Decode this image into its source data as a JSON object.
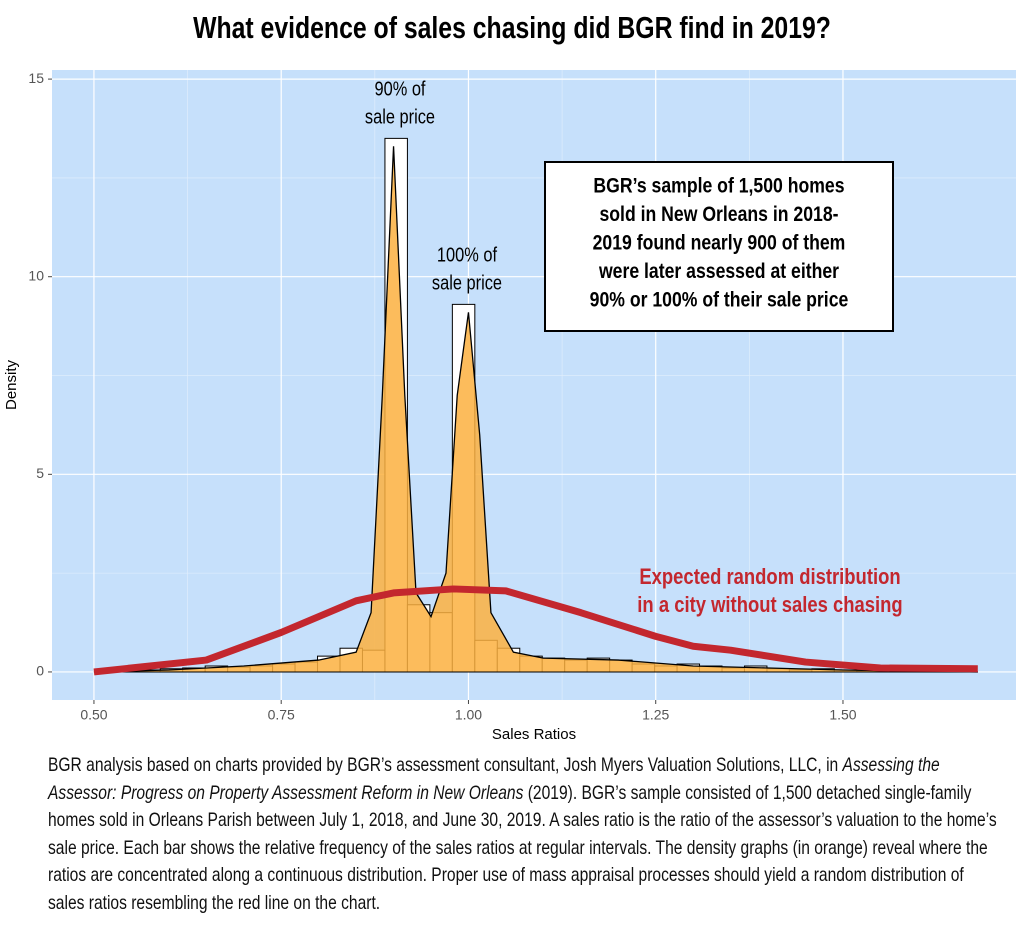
{
  "chart_data": {
    "type": "histogram",
    "title": "What evidence of sales chasing did BGR find in 2019?",
    "xlabel": "Sales Ratios",
    "ylabel": "Density",
    "xlim": [
      0.444,
      1.731
    ],
    "ylim": [
      -0.71,
      15.23
    ],
    "xticks": [
      {
        "value": 0.5,
        "label": "0.50"
      },
      {
        "value": 0.75,
        "label": "0.75"
      },
      {
        "value": 1,
        "label": "1.00"
      },
      {
        "value": 1.25,
        "label": "1.25"
      },
      {
        "value": 1.5,
        "label": "1.50"
      }
    ],
    "yticks": [
      0,
      5,
      10,
      15
    ],
    "grid": true,
    "panel_color": "#c6e0fb",
    "bar_color": "#ffffff",
    "density_color": "#fbb040",
    "expected_color": "#c3272e",
    "bins": [
      0.5285,
      0.5585,
      0.5885,
      0.6185,
      0.6485,
      0.6785,
      0.7085,
      0.7385,
      0.7685,
      0.7985,
      0.8285,
      0.8585,
      0.8885,
      0.9185,
      0.9485,
      0.9785,
      1.0085,
      1.0385,
      1.0685,
      1.0985,
      1.1285,
      1.1585,
      1.1885,
      1.2185,
      1.2485,
      1.2785,
      1.3085,
      1.3385,
      1.3685,
      1.3985,
      1.4285,
      1.4585,
      1.4885,
      1.5185,
      1.5485,
      1.5785,
      1.6085,
      1.6385,
      1.6685
    ],
    "values": [
      0.02,
      0.05,
      0.08,
      0.1,
      0.15,
      0.12,
      0.15,
      0.2,
      0.25,
      0.4,
      0.6,
      0.55,
      13.5,
      1.7,
      1.5,
      9.3,
      0.8,
      0.6,
      0.4,
      0.35,
      0.3,
      0.35,
      0.3,
      0.2,
      0.15,
      0.2,
      0.15,
      0.1,
      0.15,
      0.08,
      0.05,
      0.08,
      0.05,
      0.03,
      0.03,
      0.02,
      0.02,
      0.01
    ],
    "density": {
      "x": [
        0.5,
        0.6,
        0.7,
        0.8,
        0.85,
        0.87,
        0.885,
        0.9,
        0.915,
        0.93,
        0.95,
        0.97,
        0.985,
        1.0,
        1.015,
        1.03,
        1.06,
        1.1,
        1.2,
        1.3,
        1.4,
        1.5,
        1.6,
        1.68
      ],
      "y": [
        0,
        0.05,
        0.15,
        0.3,
        0.5,
        1.5,
        7,
        13.3,
        7,
        2,
        1.4,
        2.5,
        7,
        9.1,
        6,
        1.5,
        0.5,
        0.35,
        0.3,
        0.15,
        0.1,
        0.05,
        0.02,
        0
      ]
    },
    "expected": {
      "x": [
        0.5,
        0.65,
        0.75,
        0.85,
        0.9,
        0.98,
        1.05,
        1.15,
        1.25,
        1.3,
        1.35,
        1.45,
        1.55,
        1.68
      ],
      "y": [
        0,
        0.3,
        1.0,
        1.8,
        2.0,
        2.1,
        2.05,
        1.5,
        0.9,
        0.65,
        0.55,
        0.25,
        0.1,
        0.08
      ]
    },
    "annotations": {
      "peak_90": [
        "90% of",
        "sale price"
      ],
      "peak_100": [
        "100% of",
        "sale price"
      ],
      "box": [
        "BGR’s sample of 1,500 homes",
        "sold in New Orleans in 2018-",
        "2019 found nearly 900 of them",
        "were later assessed at either",
        "90% or 100% of their sale price"
      ],
      "expected": [
        "Expected random distribution",
        "in a city without sales chasing"
      ]
    }
  },
  "caption": {
    "before": "BGR analysis based on charts provided by BGR’s assessment consultant, Josh Myers Valuation Solutions, LLC, in ",
    "italic": "Assessing the Assessor: Progress on Property Assessment Reform in New Orleans",
    "after": " (2019). BGR’s sample consisted of 1,500 detached single-family homes sold in Orleans Parish between July 1, 2018, and June 30, 2019. A sales ratio is the ratio of the assessor’s valuation to the home’s sale price. Each bar shows the relative frequency of the sales ratios at regular intervals. The density graphs (in orange) reveal where the ratios are concentrated along a continuous distribution. Proper use of mass appraisal processes should yield a random distribution of sales ratios resembling the red line on the chart."
  }
}
